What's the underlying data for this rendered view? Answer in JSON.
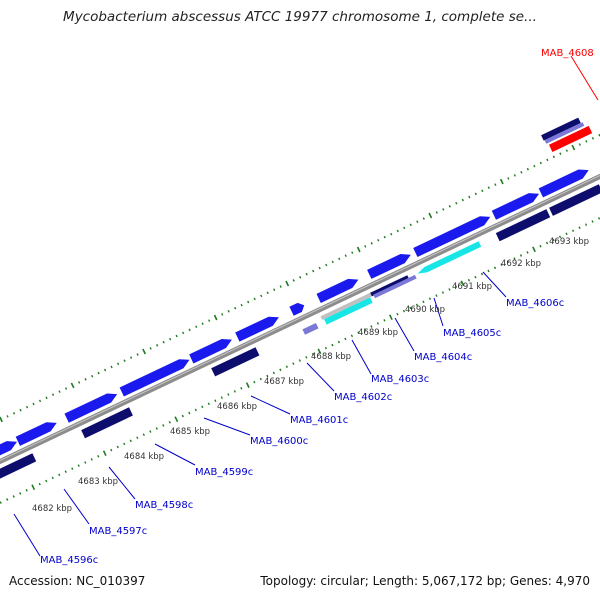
{
  "title": "Mycobacterium abscessus ATCC 19977 chromosome 1, complete se...",
  "footer": {
    "accession": "Accession: NC_010397",
    "summary": "Topology: circular; Length: 5,067,172 bp; Genes: 4,970"
  },
  "colors": {
    "cds_blue": "#1a1aee",
    "cds_navy": "#0d0d6e",
    "cds_lavender": "#7b78d8",
    "rna_cyan": "#18e6e6",
    "highlight_red": "#ff0000",
    "backbone_gray": "#8c8c8c",
    "tick_green": "#1f7a1f",
    "label_blue": "#0000cc"
  },
  "kbp_ticks": [
    "4682 kbp",
    "4683 kbp",
    "4684 kbp",
    "4685 kbp",
    "4686 kbp",
    "4687 kbp",
    "4688 kbp",
    "4689 kbp",
    "4690 kbp",
    "4691 kbp",
    "4692 kbp",
    "4693 kbp"
  ],
  "gene_labels": [
    {
      "id": "MAB_4596c",
      "label": "MAB_4596c",
      "color": "#0000cc"
    },
    {
      "id": "MAB_4597c",
      "label": "MAB_4597c",
      "color": "#0000cc"
    },
    {
      "id": "MAB_4598c",
      "label": "MAB_4598c",
      "color": "#0000cc"
    },
    {
      "id": "MAB_4599c",
      "label": "MAB_4599c",
      "color": "#0000cc"
    },
    {
      "id": "MAB_4600c",
      "label": "MAB_4600c",
      "color": "#0000cc"
    },
    {
      "id": "MAB_4601c",
      "label": "MAB_4601c",
      "color": "#0000cc"
    },
    {
      "id": "MAB_4602c",
      "label": "MAB_4602c",
      "color": "#0000cc"
    },
    {
      "id": "MAB_4603c",
      "label": "MAB_4603c",
      "color": "#0000cc"
    },
    {
      "id": "MAB_4604c",
      "label": "MAB_4604c",
      "color": "#0000cc"
    },
    {
      "id": "MAB_4605c",
      "label": "MAB_4605c",
      "color": "#0000cc"
    },
    {
      "id": "MAB_4606c",
      "label": "MAB_4606c",
      "color": "#0000cc"
    },
    {
      "id": "MAB_4608",
      "label": "MAB_4608",
      "color": "#ff0000"
    }
  ]
}
